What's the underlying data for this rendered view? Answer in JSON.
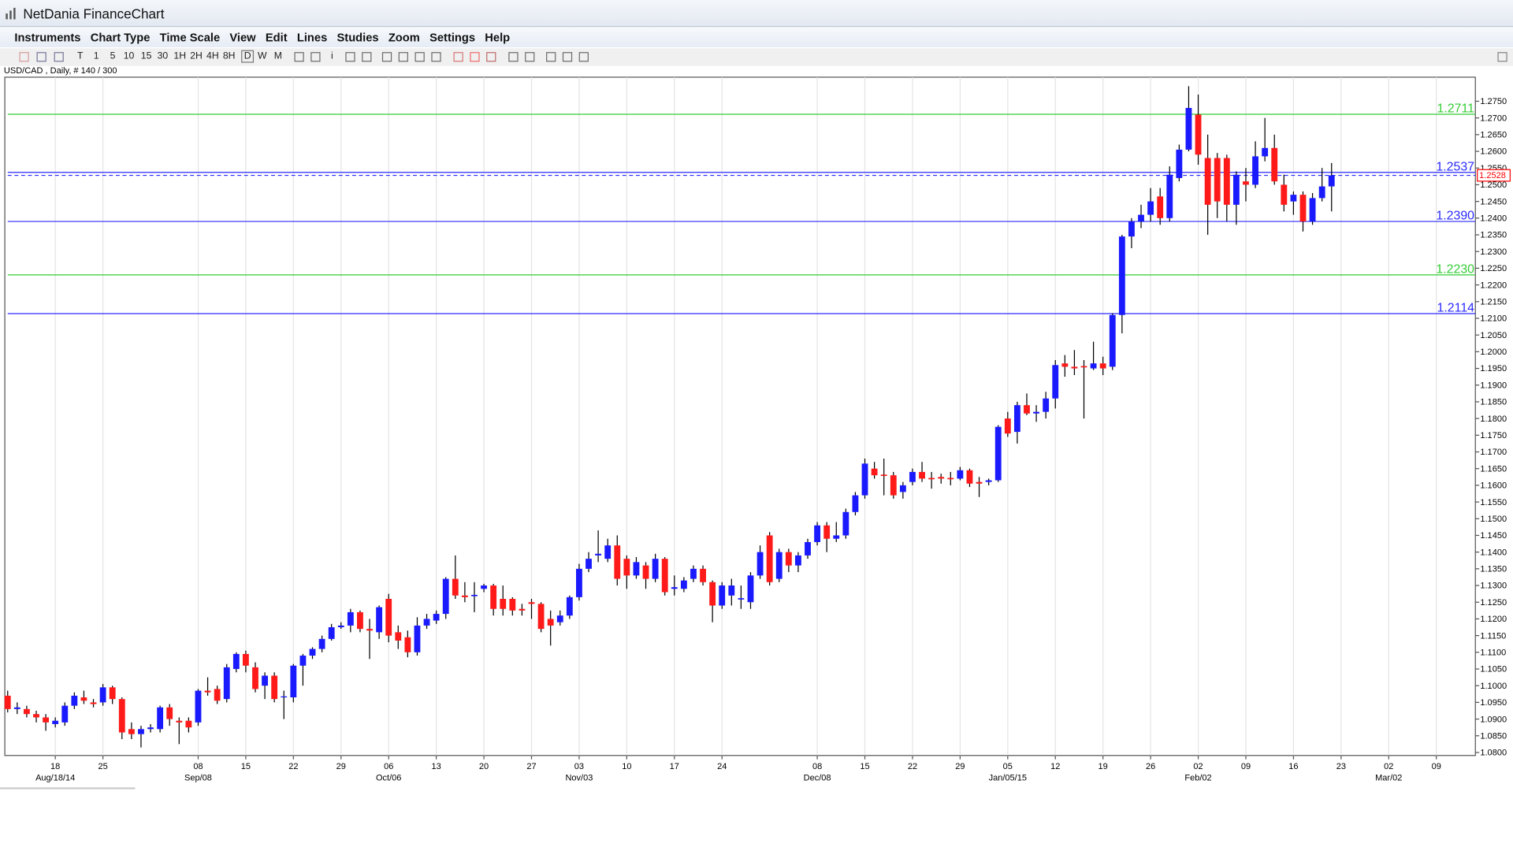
{
  "window": {
    "title": "NetDania FinanceChart"
  },
  "menu": [
    "Instruments",
    "Chart Type",
    "Time Scale",
    "View",
    "Edit",
    "Lines",
    "Studies",
    "Zoom",
    "Settings",
    "Help"
  ],
  "toolbar": [
    "T",
    "1",
    "5",
    "10",
    "15",
    "30",
    "1H",
    "2H",
    "4H",
    "8H",
    "D",
    "W",
    "M",
    "i"
  ],
  "chart_data": {
    "type": "candlestick",
    "subtitle": "USD/CAD , Daily, # 140 / 300",
    "up_color": "#1a1aff",
    "down_color": "#ff1a1a",
    "open": [
      1.097,
      1.093,
      1.093,
      1.0915,
      1.0905,
      1.0885,
      1.089,
      1.094,
      1.0965,
      1.095,
      1.095,
      1.0995,
      1.096,
      1.087,
      1.0855,
      1.087,
      1.087,
      1.0935,
      1.0895,
      1.0895,
      1.089,
      1.0985,
      1.099,
      1.096,
      1.105,
      1.1095,
      1.1055,
      1.1,
      1.103,
      1.0965,
      1.0965,
      1.106,
      1.109,
      1.111,
      1.114,
      1.1175,
      1.118,
      1.122,
      1.117,
      1.116,
      1.126,
      1.116,
      1.1145,
      1.11,
      1.118,
      1.1195,
      1.1215,
      1.132,
      1.127,
      1.1268,
      1.129,
      1.13,
      1.126,
      1.126,
      1.123,
      1.125,
      1.1245,
      1.12,
      1.119,
      1.121,
      1.1265,
      1.135,
      1.139,
      1.138,
      1.142,
      1.138,
      1.133,
      1.136,
      1.132,
      1.138,
      1.129,
      1.129,
      1.132,
      1.135,
      1.131,
      1.124,
      1.127,
      1.1258,
      1.125,
      1.133,
      1.145,
      1.132,
      1.14,
      1.136,
      1.139,
      1.143,
      1.148,
      1.144,
      1.145,
      1.152,
      1.157,
      1.165,
      1.1632,
      1.163,
      1.158,
      1.161,
      1.164,
      1.1622,
      1.1625,
      1.1622,
      1.162,
      1.1645,
      1.161,
      1.161,
      1.1615,
      1.18,
      1.176,
      1.184,
      1.1815,
      1.182,
      1.186,
      1.1965,
      1.1955,
      1.1957,
      1.195,
      1.1965,
      1.1955,
      1.211,
      1.2345,
      1.239,
      1.241,
      1.2465,
      1.24,
      1.252,
      1.2605,
      1.271,
      1.258,
      1.258,
      1.258,
      1.244,
      1.251,
      1.25,
      1.2585,
      1.261,
      1.25,
      1.245,
      1.247,
      1.239,
      1.246,
      1.2495
    ],
    "high": [
      1.0985,
      1.095,
      1.094,
      1.0925,
      1.0915,
      1.0905,
      1.095,
      1.098,
      1.0985,
      1.096,
      1.1005,
      1.1,
      1.0965,
      1.089,
      1.088,
      1.0885,
      1.094,
      1.0945,
      1.0905,
      1.0905,
      1.099,
      1.1025,
      1.1,
      1.1065,
      1.11,
      1.1105,
      1.107,
      1.104,
      1.104,
      1.0985,
      1.1065,
      1.1095,
      1.1115,
      1.115,
      1.1185,
      1.119,
      1.123,
      1.1225,
      1.12,
      1.124,
      1.1275,
      1.118,
      1.1165,
      1.1205,
      1.1215,
      1.1225,
      1.1325,
      1.139,
      1.131,
      1.131,
      1.1305,
      1.1305,
      1.13,
      1.1265,
      1.1245,
      1.126,
      1.125,
      1.1225,
      1.1225,
      1.127,
      1.1365,
      1.14,
      1.1465,
      1.144,
      1.145,
      1.139,
      1.1385,
      1.137,
      1.1395,
      1.1385,
      1.133,
      1.1325,
      1.136,
      1.136,
      1.1315,
      1.131,
      1.132,
      1.13,
      1.134,
      1.142,
      1.146,
      1.141,
      1.141,
      1.14,
      1.144,
      1.149,
      1.149,
      1.149,
      1.153,
      1.158,
      1.168,
      1.167,
      1.168,
      1.164,
      1.161,
      1.165,
      1.167,
      1.164,
      1.1635,
      1.164,
      1.1655,
      1.165,
      1.1625,
      1.162,
      1.178,
      1.182,
      1.185,
      1.1875,
      1.184,
      1.188,
      1.1975,
      1.199,
      1.2005,
      1.1975,
      1.203,
      1.1985,
      1.2115,
      1.235,
      1.24,
      1.244,
      1.249,
      1.249,
      1.2555,
      1.262,
      1.2795,
      1.277,
      1.265,
      1.2595,
      1.259,
      1.254,
      1.255,
      1.263,
      1.27,
      1.265,
      1.253,
      1.248,
      1.248,
      1.2475,
      1.255,
      1.2565
    ],
    "low": [
      1.092,
      1.0915,
      1.0905,
      1.089,
      1.0865,
      1.0875,
      1.088,
      1.093,
      1.0945,
      1.0935,
      1.094,
      1.0945,
      1.084,
      1.084,
      1.0815,
      1.086,
      1.086,
      1.088,
      1.0825,
      1.086,
      1.088,
      1.097,
      1.0945,
      1.095,
      1.104,
      1.104,
      1.098,
      1.096,
      1.095,
      1.09,
      1.095,
      1.1,
      1.108,
      1.11,
      1.1135,
      1.117,
      1.116,
      1.116,
      1.108,
      1.114,
      1.113,
      1.111,
      1.1085,
      1.109,
      1.117,
      1.1185,
      1.12,
      1.126,
      1.125,
      1.122,
      1.128,
      1.121,
      1.121,
      1.121,
      1.121,
      1.12,
      1.116,
      1.112,
      1.118,
      1.12,
      1.1255,
      1.134,
      1.137,
      1.137,
      1.13,
      1.129,
      1.132,
      1.129,
      1.131,
      1.127,
      1.127,
      1.128,
      1.131,
      1.13,
      1.119,
      1.123,
      1.124,
      1.123,
      1.123,
      1.132,
      1.13,
      1.131,
      1.134,
      1.134,
      1.138,
      1.142,
      1.14,
      1.143,
      1.144,
      1.151,
      1.156,
      1.162,
      1.157,
      1.156,
      1.156,
      1.16,
      1.161,
      1.159,
      1.1605,
      1.16,
      1.1615,
      1.1595,
      1.1565,
      1.16,
      1.161,
      1.1745,
      1.1725,
      1.181,
      1.179,
      1.18,
      1.183,
      1.1925,
      1.193,
      1.18,
      1.1945,
      1.193,
      1.1945,
      1.2055,
      1.231,
      1.237,
      1.239,
      1.238,
      1.239,
      1.251,
      1.26,
      1.256,
      1.235,
      1.24,
      1.239,
      1.238,
      1.245,
      1.249,
      1.257,
      1.25,
      1.242,
      1.241,
      1.236,
      1.238,
      1.245,
      1.242
    ],
    "close": [
      1.093,
      1.0935,
      1.0915,
      1.0905,
      1.089,
      1.0895,
      1.094,
      1.097,
      1.0955,
      1.0945,
      1.0995,
      1.096,
      1.086,
      1.0855,
      1.087,
      1.0875,
      1.0935,
      1.09,
      1.089,
      1.0875,
      1.0985,
      1.098,
      1.0955,
      1.1055,
      1.1095,
      1.106,
      1.099,
      1.103,
      1.096,
      1.0968,
      1.106,
      1.109,
      1.111,
      1.114,
      1.1175,
      1.118,
      1.122,
      1.117,
      1.1165,
      1.1235,
      1.115,
      1.1135,
      1.11,
      1.118,
      1.12,
      1.1215,
      1.132,
      1.127,
      1.1265,
      1.1272,
      1.13,
      1.123,
      1.123,
      1.1225,
      1.1225,
      1.1245,
      1.117,
      1.118,
      1.121,
      1.1265,
      1.135,
      1.138,
      1.1395,
      1.142,
      1.132,
      1.133,
      1.137,
      1.132,
      1.138,
      1.128,
      1.1295,
      1.1315,
      1.135,
      1.131,
      1.124,
      1.13,
      1.13,
      1.1262,
      1.133,
      1.14,
      1.131,
      1.14,
      1.136,
      1.139,
      1.143,
      1.148,
      1.144,
      1.145,
      1.152,
      1.157,
      1.1665,
      1.163,
      1.1628,
      1.157,
      1.16,
      1.164,
      1.162,
      1.1618,
      1.162,
      1.1618,
      1.1645,
      1.1605,
      1.1605,
      1.1615,
      1.1775,
      1.1755,
      1.184,
      1.1815,
      1.182,
      1.186,
      1.196,
      1.1955,
      1.195,
      1.1953,
      1.1965,
      1.195,
      1.211,
      1.2345,
      1.239,
      1.241,
      1.245,
      1.24,
      1.253,
      1.2605,
      1.273,
      1.259,
      1.244,
      1.245,
      1.244,
      1.253,
      1.25,
      1.2585,
      1.261,
      1.251,
      1.244,
      1.247,
      1.239,
      1.246,
      1.2495,
      1.2528
    ],
    "xlim": [
      -0.3,
      154.1
    ],
    "xticks": [
      {
        "value": 5,
        "label": "18"
      },
      {
        "value": 10,
        "label": "25"
      },
      {
        "value": 20,
        "label": "08"
      },
      {
        "value": 25,
        "label": "15"
      },
      {
        "value": 30,
        "label": "22"
      },
      {
        "value": 35,
        "label": "29"
      },
      {
        "value": 40,
        "label": "06"
      },
      {
        "value": 45,
        "label": "13"
      },
      {
        "value": 50,
        "label": "20"
      },
      {
        "value": 55,
        "label": "27"
      },
      {
        "value": 60,
        "label": "03"
      },
      {
        "value": 65,
        "label": "10"
      },
      {
        "value": 70,
        "label": "17"
      },
      {
        "value": 75,
        "label": "24"
      },
      {
        "value": 85,
        "label": "08"
      },
      {
        "value": 90,
        "label": "15"
      },
      {
        "value": 95,
        "label": "22"
      },
      {
        "value": 100,
        "label": "29"
      },
      {
        "value": 105,
        "label": "05"
      },
      {
        "value": 110,
        "label": "12"
      },
      {
        "value": 115,
        "label": "19"
      },
      {
        "value": 120,
        "label": "26"
      },
      {
        "value": 125,
        "label": "02"
      },
      {
        "value": 130,
        "label": "09"
      },
      {
        "value": 135,
        "label": "16"
      },
      {
        "value": 140,
        "label": "23"
      },
      {
        "value": 145,
        "label": "02"
      },
      {
        "value": 150,
        "label": "09"
      }
    ],
    "xticks_major": [
      {
        "value": 5,
        "label": "Aug/18/14"
      },
      {
        "value": 20,
        "label": "Sep/08"
      },
      {
        "value": 40,
        "label": "Oct/06"
      },
      {
        "value": 60,
        "label": "Nov/03"
      },
      {
        "value": 85,
        "label": "Dec/08"
      },
      {
        "value": 105,
        "label": "Jan/05/15"
      },
      {
        "value": 125,
        "label": "Feb/02"
      },
      {
        "value": 145,
        "label": "Mar/02"
      }
    ],
    "ylim": [
      1.0791,
      1.2822
    ],
    "yticks": [
      {
        "value": 1.08,
        "label": "1.0800"
      },
      {
        "value": 1.085,
        "label": "1.0850"
      },
      {
        "value": 1.09,
        "label": "1.0900"
      },
      {
        "value": 1.095,
        "label": "1.0950"
      },
      {
        "value": 1.1,
        "label": "1.1000"
      },
      {
        "value": 1.105,
        "label": "1.1050"
      },
      {
        "value": 1.11,
        "label": "1.1100"
      },
      {
        "value": 1.115,
        "label": "1.1150"
      },
      {
        "value": 1.12,
        "label": "1.1200"
      },
      {
        "value": 1.125,
        "label": "1.1250"
      },
      {
        "value": 1.13,
        "label": "1.1300"
      },
      {
        "value": 1.135,
        "label": "1.1350"
      },
      {
        "value": 1.14,
        "label": "1.1400"
      },
      {
        "value": 1.145,
        "label": "1.1450"
      },
      {
        "value": 1.15,
        "label": "1.1500"
      },
      {
        "value": 1.155,
        "label": "1.1550"
      },
      {
        "value": 1.16,
        "label": "1.1600"
      },
      {
        "value": 1.165,
        "label": "1.1650"
      },
      {
        "value": 1.17,
        "label": "1.1700"
      },
      {
        "value": 1.175,
        "label": "1.1750"
      },
      {
        "value": 1.18,
        "label": "1.1800"
      },
      {
        "value": 1.185,
        "label": "1.1850"
      },
      {
        "value": 1.19,
        "label": "1.1900"
      },
      {
        "value": 1.195,
        "label": "1.1950"
      },
      {
        "value": 1.2,
        "label": "1.2000"
      },
      {
        "value": 1.205,
        "label": "1.2050"
      },
      {
        "value": 1.21,
        "label": "1.2100"
      },
      {
        "value": 1.215,
        "label": "1.2150"
      },
      {
        "value": 1.22,
        "label": "1.2200"
      },
      {
        "value": 1.225,
        "label": "1.2250"
      },
      {
        "value": 1.23,
        "label": "1.2300"
      },
      {
        "value": 1.235,
        "label": "1.2350"
      },
      {
        "value": 1.24,
        "label": "1.2400"
      },
      {
        "value": 1.245,
        "label": "1.2450"
      },
      {
        "value": 1.25,
        "label": "1.2500"
      },
      {
        "value": 1.255,
        "label": "1.2550"
      },
      {
        "value": 1.26,
        "label": "1.2600"
      },
      {
        "value": 1.265,
        "label": "1.2650"
      },
      {
        "value": 1.27,
        "label": "1.2700"
      },
      {
        "value": 1.275,
        "label": "1.2750"
      }
    ],
    "grid": "x",
    "levels": [
      {
        "value": 1.2711,
        "color": "#33cc33"
      },
      {
        "value": 1.2537,
        "color": "#2a2aff"
      },
      {
        "value": 1.239,
        "label": "1.2390",
        "color": "#2a2aff"
      },
      {
        "value": 1.223,
        "label": "1.2230",
        "color": "#33cc33"
      },
      {
        "value": 1.2114,
        "color": "#2a2aff"
      }
    ],
    "last": {
      "value": 1.2528,
      "color": "#ff0000"
    }
  }
}
